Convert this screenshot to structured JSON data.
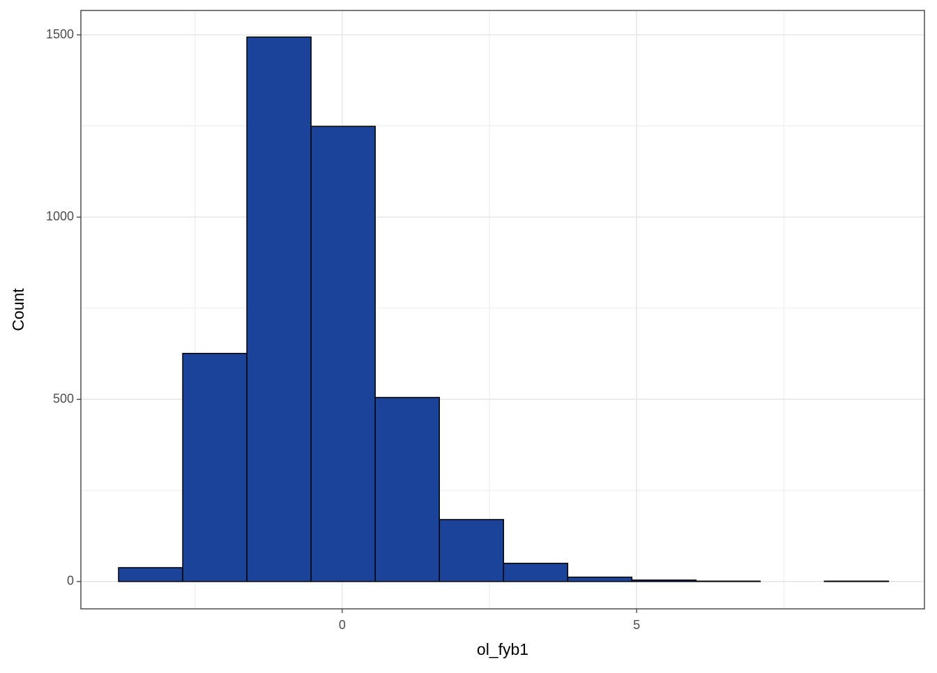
{
  "chart_data": {
    "type": "histogram",
    "x_label": "ol_fyb1",
    "y_label": "Count",
    "bins": [
      -3.8,
      -2.71,
      -1.62,
      -0.53,
      0.56,
      1.65,
      2.74,
      3.83,
      4.92,
      6.01,
      7.1,
      8.19,
      9.28
    ],
    "values": [
      38,
      626,
      1494,
      1249,
      505,
      170,
      50,
      12,
      4,
      1,
      0,
      1
    ],
    "color": "#1a4399",
    "edge_color": "#000000",
    "xlim": [
      -4.44,
      9.89
    ],
    "xticks": [
      0,
      5
    ],
    "xminorticks": [
      -2.5,
      2.5,
      7.5
    ],
    "ylim": [
      -75,
      1567
    ],
    "yticks": [
      0,
      500,
      1000,
      1500
    ],
    "yminorticks": [
      250,
      750,
      1250
    ],
    "grid": true
  }
}
